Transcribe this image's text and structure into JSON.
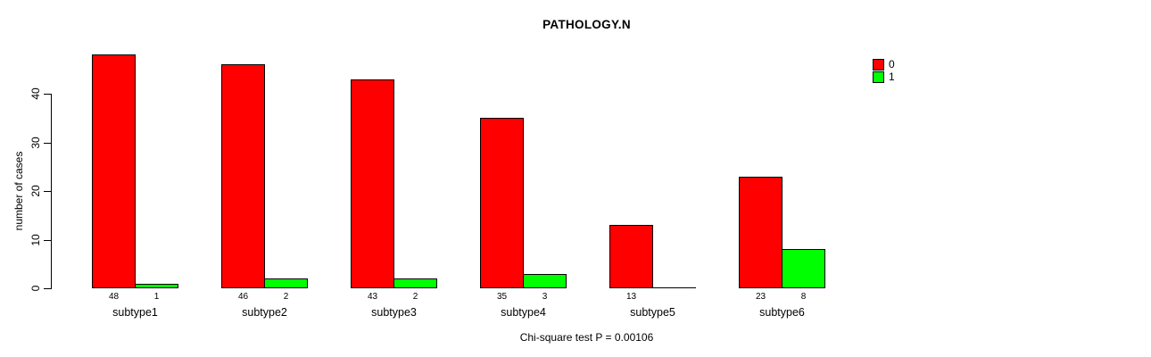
{
  "chart_data": {
    "type": "bar",
    "title": "PATHOLOGY.N",
    "xlabel": "",
    "ylabel": "number of cases",
    "categories": [
      "subtype1",
      "subtype2",
      "subtype3",
      "subtype4",
      "subtype5",
      "subtype6"
    ],
    "series": [
      {
        "name": "0",
        "color": "#ff0000",
        "values": [
          48,
          46,
          43,
          35,
          13,
          23
        ]
      },
      {
        "name": "1",
        "color": "#00ff00",
        "values": [
          1,
          2,
          2,
          3,
          0,
          8
        ]
      }
    ],
    "value_labels": [
      [
        "48",
        "1"
      ],
      [
        "46",
        "2"
      ],
      [
        "43",
        "2"
      ],
      [
        "35",
        "3"
      ],
      [
        "13",
        ""
      ],
      [
        "23",
        "8"
      ]
    ],
    "yticks": [
      0,
      10,
      20,
      30,
      40
    ],
    "ylim": [
      0,
      48
    ],
    "grid": false,
    "legend_position": "top-right",
    "annotation": "Chi-square test P = 0.00106",
    "bar_border_color": "#000000"
  }
}
